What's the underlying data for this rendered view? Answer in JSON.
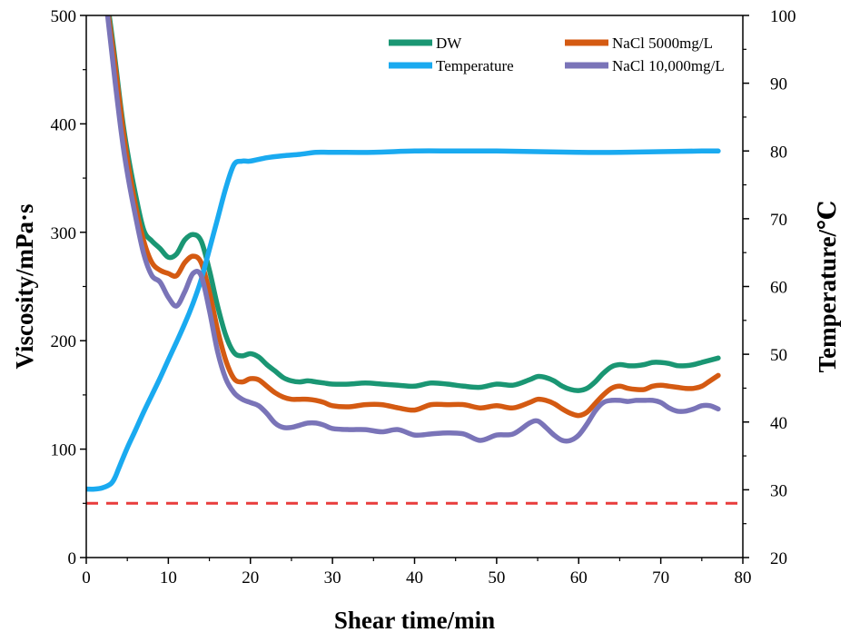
{
  "chart_data": {
    "type": "line",
    "xlabel": "Shear time/min",
    "ylabel": "Viscosity/mPa·s",
    "y2label": "Temperature/℃",
    "xlim": [
      0,
      80
    ],
    "ylim": [
      0,
      500
    ],
    "y2lim": [
      20,
      100
    ],
    "x_ticks": [
      0,
      10,
      20,
      30,
      40,
      50,
      60,
      70,
      80
    ],
    "y_ticks": [
      0,
      100,
      200,
      300,
      400,
      500
    ],
    "y2_ticks": [
      20,
      30,
      40,
      50,
      60,
      70,
      80,
      90,
      100
    ],
    "grid": false,
    "legend_position": "top-right",
    "series": [
      {
        "name": "DW",
        "axis": "left",
        "color": "#1a9673",
        "points": [
          [
            2.8,
            500
          ],
          [
            3.5,
            460
          ],
          [
            4.3,
            410
          ],
          [
            5,
            375
          ],
          [
            6,
            335
          ],
          [
            7,
            302
          ],
          [
            8,
            292
          ],
          [
            9,
            285
          ],
          [
            10,
            277
          ],
          [
            11,
            280
          ],
          [
            12,
            293
          ],
          [
            13,
            298
          ],
          [
            14,
            292
          ],
          [
            15,
            265
          ],
          [
            16,
            232
          ],
          [
            17,
            205
          ],
          [
            18,
            189
          ],
          [
            19,
            186
          ],
          [
            20,
            188
          ],
          [
            21,
            185
          ],
          [
            22,
            178
          ],
          [
            23,
            172
          ],
          [
            24,
            166
          ],
          [
            25,
            163
          ],
          [
            26,
            162
          ],
          [
            27,
            163
          ],
          [
            28,
            162
          ],
          [
            29,
            161
          ],
          [
            30,
            160
          ],
          [
            32,
            160
          ],
          [
            34,
            161
          ],
          [
            36,
            160
          ],
          [
            38,
            159
          ],
          [
            40,
            158
          ],
          [
            42,
            161
          ],
          [
            44,
            160
          ],
          [
            46,
            158
          ],
          [
            48,
            157
          ],
          [
            50,
            160
          ],
          [
            52,
            159
          ],
          [
            54,
            164
          ],
          [
            55,
            167
          ],
          [
            56,
            166
          ],
          [
            57,
            163
          ],
          [
            58,
            158
          ],
          [
            59,
            155
          ],
          [
            60,
            154
          ],
          [
            61,
            156
          ],
          [
            62,
            162
          ],
          [
            63,
            170
          ],
          [
            64,
            176
          ],
          [
            65,
            178
          ],
          [
            66,
            177
          ],
          [
            67,
            177
          ],
          [
            68,
            178
          ],
          [
            69,
            180
          ],
          [
            70,
            180
          ],
          [
            71,
            179
          ],
          [
            72,
            177
          ],
          [
            73,
            177
          ],
          [
            74,
            178
          ],
          [
            75,
            180
          ],
          [
            76,
            182
          ],
          [
            77,
            184
          ]
        ]
      },
      {
        "name": "NaCl 5000mg/L",
        "axis": "left",
        "color": "#d45a12",
        "points": [
          [
            2.7,
            500
          ],
          [
            3.5,
            455
          ],
          [
            4.3,
            405
          ],
          [
            5,
            368
          ],
          [
            6,
            325
          ],
          [
            7,
            292
          ],
          [
            8,
            272
          ],
          [
            9,
            265
          ],
          [
            10,
            262
          ],
          [
            11,
            260
          ],
          [
            12,
            272
          ],
          [
            13,
            278
          ],
          [
            14,
            272
          ],
          [
            15,
            245
          ],
          [
            16,
            210
          ],
          [
            17,
            182
          ],
          [
            18,
            165
          ],
          [
            19,
            162
          ],
          [
            20,
            165
          ],
          [
            21,
            164
          ],
          [
            22,
            158
          ],
          [
            23,
            152
          ],
          [
            24,
            148
          ],
          [
            25,
            146
          ],
          [
            26,
            146
          ],
          [
            27,
            146
          ],
          [
            28,
            145
          ],
          [
            29,
            143
          ],
          [
            30,
            140
          ],
          [
            32,
            139
          ],
          [
            34,
            141
          ],
          [
            36,
            141
          ],
          [
            38,
            138
          ],
          [
            40,
            136
          ],
          [
            42,
            141
          ],
          [
            44,
            141
          ],
          [
            46,
            141
          ],
          [
            48,
            138
          ],
          [
            50,
            140
          ],
          [
            52,
            138
          ],
          [
            54,
            143
          ],
          [
            55,
            146
          ],
          [
            56,
            145
          ],
          [
            57,
            142
          ],
          [
            58,
            137
          ],
          [
            59,
            133
          ],
          [
            60,
            131
          ],
          [
            61,
            134
          ],
          [
            62,
            142
          ],
          [
            63,
            150
          ],
          [
            64,
            156
          ],
          [
            65,
            158
          ],
          [
            66,
            156
          ],
          [
            67,
            155
          ],
          [
            68,
            155
          ],
          [
            69,
            158
          ],
          [
            70,
            159
          ],
          [
            71,
            158
          ],
          [
            72,
            157
          ],
          [
            73,
            156
          ],
          [
            74,
            156
          ],
          [
            75,
            158
          ],
          [
            76,
            163
          ],
          [
            77,
            168
          ]
        ]
      },
      {
        "name": "Temperature",
        "axis": "right",
        "color": "#1aaaf0",
        "points": [
          [
            0,
            30.1
          ],
          [
            1,
            30.1
          ],
          [
            2,
            30.3
          ],
          [
            3,
            30.9
          ],
          [
            3.5,
            31.8
          ],
          [
            4,
            33.3
          ],
          [
            5,
            36.2
          ],
          [
            6,
            38.8
          ],
          [
            7,
            41.5
          ],
          [
            8,
            44.0
          ],
          [
            9,
            46.5
          ],
          [
            10,
            49.2
          ],
          [
            11,
            51.8
          ],
          [
            12,
            54.5
          ],
          [
            13,
            57.5
          ],
          [
            14,
            61.0
          ],
          [
            15,
            65.5
          ],
          [
            16,
            70.0
          ],
          [
            17,
            74.5
          ],
          [
            18,
            78.0
          ],
          [
            19,
            78.5
          ],
          [
            20,
            78.5
          ],
          [
            22,
            79.0
          ],
          [
            24,
            79.3
          ],
          [
            26,
            79.5
          ],
          [
            28,
            79.8
          ],
          [
            30,
            79.8
          ],
          [
            35,
            79.8
          ],
          [
            40,
            80.0
          ],
          [
            45,
            80.0
          ],
          [
            50,
            80.0
          ],
          [
            55,
            79.9
          ],
          [
            60,
            79.8
          ],
          [
            65,
            79.8
          ],
          [
            70,
            79.9
          ],
          [
            75,
            80.0
          ],
          [
            77,
            80.0
          ]
        ]
      },
      {
        "name": "NaCl 10,000mg/L",
        "axis": "left",
        "color": "#7a74b8",
        "points": [
          [
            2.6,
            500
          ],
          [
            3.5,
            440
          ],
          [
            4.3,
            390
          ],
          [
            5,
            355
          ],
          [
            6,
            315
          ],
          [
            7,
            280
          ],
          [
            8,
            260
          ],
          [
            9,
            254
          ],
          [
            10,
            240
          ],
          [
            11,
            232
          ],
          [
            12,
            245
          ],
          [
            13,
            262
          ],
          [
            14,
            260
          ],
          [
            15,
            228
          ],
          [
            16,
            190
          ],
          [
            17,
            165
          ],
          [
            18,
            152
          ],
          [
            19,
            146
          ],
          [
            20,
            143
          ],
          [
            21,
            140
          ],
          [
            22,
            133
          ],
          [
            23,
            124
          ],
          [
            24,
            120
          ],
          [
            25,
            120
          ],
          [
            26,
            122
          ],
          [
            27,
            124
          ],
          [
            28,
            124
          ],
          [
            29,
            122
          ],
          [
            30,
            119
          ],
          [
            32,
            118
          ],
          [
            34,
            118
          ],
          [
            36,
            116
          ],
          [
            38,
            118
          ],
          [
            40,
            113
          ],
          [
            42,
            114
          ],
          [
            44,
            115
          ],
          [
            46,
            114
          ],
          [
            48,
            108
          ],
          [
            50,
            113
          ],
          [
            52,
            114
          ],
          [
            54,
            124
          ],
          [
            55,
            126
          ],
          [
            56,
            120
          ],
          [
            57,
            113
          ],
          [
            58,
            108
          ],
          [
            59,
            108
          ],
          [
            60,
            113
          ],
          [
            61,
            123
          ],
          [
            62,
            135
          ],
          [
            63,
            143
          ],
          [
            64,
            145
          ],
          [
            65,
            145
          ],
          [
            66,
            144
          ],
          [
            67,
            145
          ],
          [
            68,
            145
          ],
          [
            69,
            145
          ],
          [
            70,
            143
          ],
          [
            71,
            138
          ],
          [
            72,
            135
          ],
          [
            73,
            135
          ],
          [
            74,
            137
          ],
          [
            75,
            140
          ],
          [
            76,
            140
          ],
          [
            77,
            137
          ]
        ]
      }
    ],
    "reference_line": {
      "axis": "left",
      "value": 50,
      "color": "#e83c3c",
      "style": "dashed"
    }
  }
}
